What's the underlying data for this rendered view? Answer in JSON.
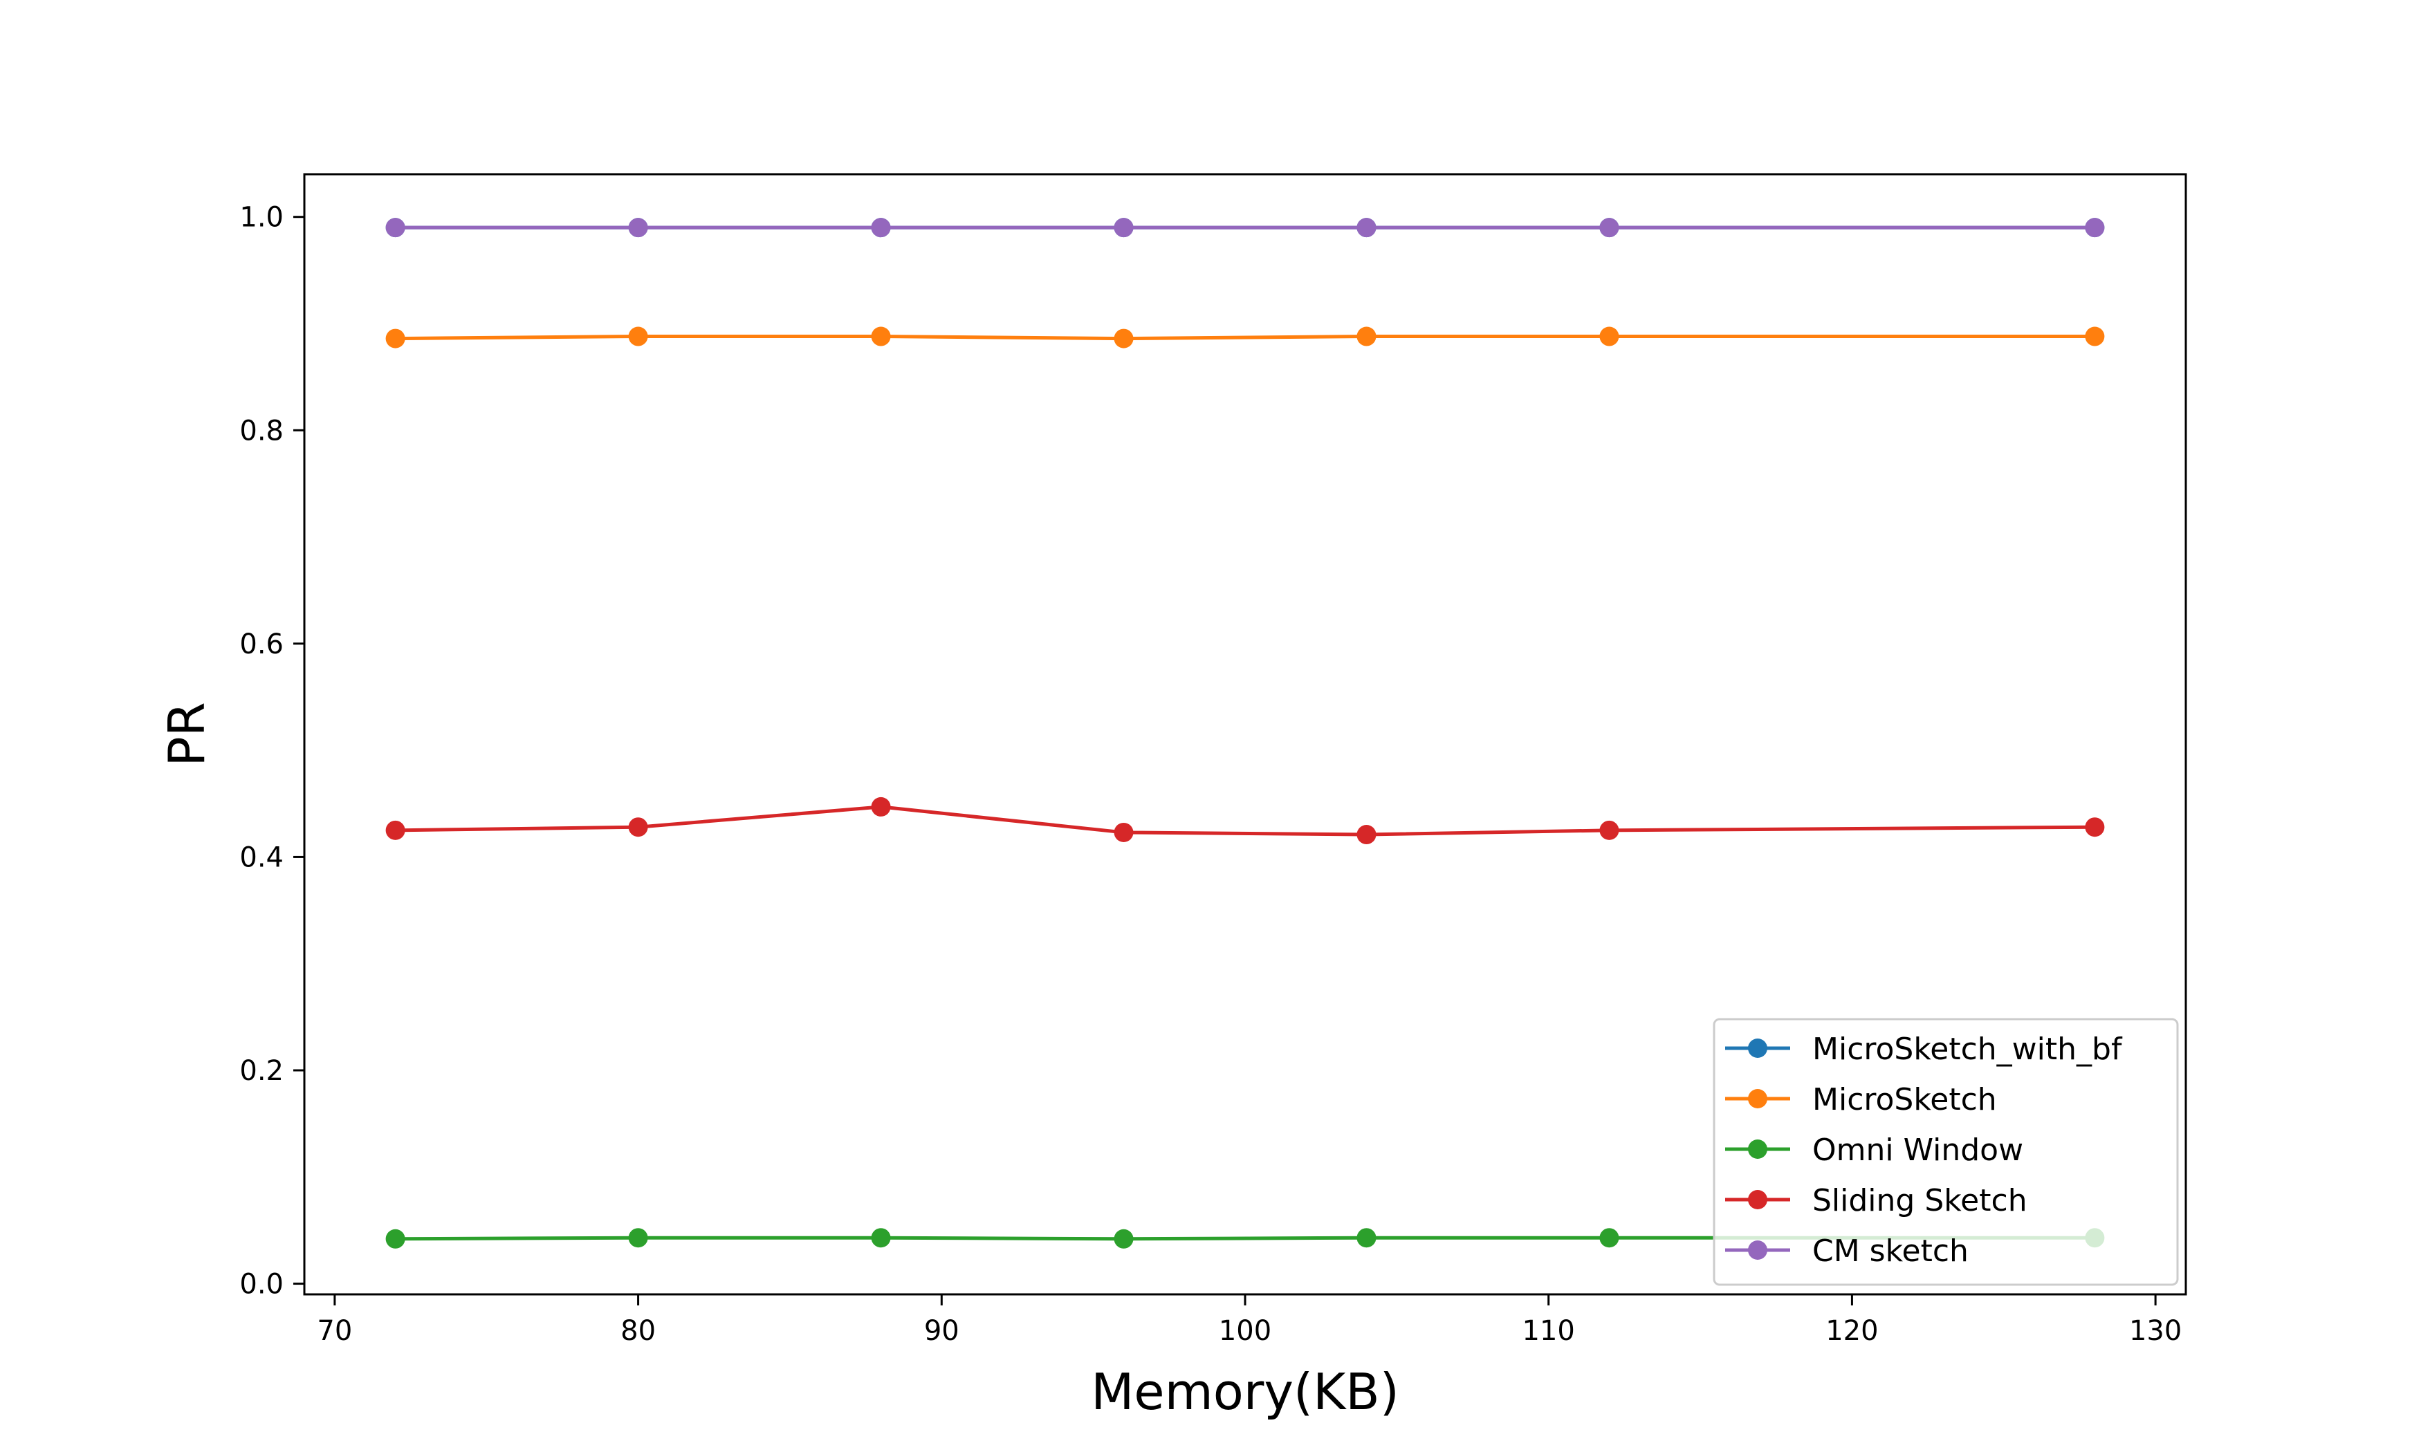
{
  "chart_data": {
    "type": "line",
    "xlabel": "Memory(KB)",
    "ylabel": "PR",
    "xlim": [
      69,
      131
    ],
    "ylim": [
      -0.01,
      1.04
    ],
    "xticks": [
      70,
      80,
      90,
      100,
      110,
      120,
      130
    ],
    "xtick_labels": [
      "70",
      "80",
      "90",
      "100",
      "110",
      "120",
      "130"
    ],
    "yticks": [
      0.0,
      0.2,
      0.4,
      0.6,
      0.8,
      1.0
    ],
    "ytick_labels": [
      "0.0",
      "0.2",
      "0.4",
      "0.6",
      "0.8",
      "1.0"
    ],
    "grid": false,
    "legend_position": "bottom-right",
    "x": [
      72,
      80,
      88,
      96,
      104,
      112,
      128
    ],
    "series": [
      {
        "name": "MicroSketch_with_bf",
        "color": "#1f77b4",
        "values": [
          0.99,
          0.99,
          0.99,
          0.99,
          0.99,
          0.99,
          0.99
        ]
      },
      {
        "name": "MicroSketch",
        "color": "#ff7f0e",
        "values": [
          0.886,
          0.888,
          0.888,
          0.886,
          0.888,
          0.888,
          0.888
        ]
      },
      {
        "name": "Omni Window",
        "color": "#2ca02c",
        "values": [
          0.042,
          0.043,
          0.043,
          0.042,
          0.043,
          0.043,
          0.043
        ]
      },
      {
        "name": "Sliding Sketch",
        "color": "#d62728",
        "values": [
          0.425,
          0.428,
          0.447,
          0.423,
          0.421,
          0.425,
          0.428
        ]
      },
      {
        "name": "CM sketch",
        "color": "#9467bd",
        "values": [
          0.99,
          0.99,
          0.99,
          0.99,
          0.99,
          0.99,
          0.99
        ]
      }
    ]
  }
}
